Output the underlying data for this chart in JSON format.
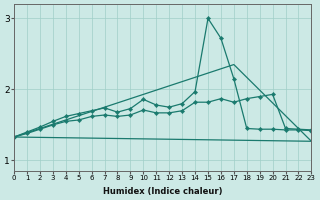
{
  "xlabel": "Humidex (Indice chaleur)",
  "bg_color": "#cce9e5",
  "grid_color": "#a0cfc8",
  "line_color": "#1a7a6e",
  "xlim": [
    0,
    23
  ],
  "ylim": [
    0.85,
    3.2
  ],
  "yticks": [
    1,
    2,
    3
  ],
  "xticks": [
    0,
    1,
    2,
    3,
    4,
    5,
    6,
    7,
    8,
    9,
    10,
    11,
    12,
    13,
    14,
    15,
    16,
    17,
    18,
    19,
    20,
    21,
    22,
    23
  ],
  "series": [
    {
      "x": [
        0,
        23
      ],
      "y": [
        1.33,
        1.27
      ],
      "marker": false
    },
    {
      "x": [
        0,
        17,
        23
      ],
      "y": [
        1.33,
        2.35,
        1.27
      ],
      "marker": false
    },
    {
      "x": [
        0,
        1,
        2,
        3,
        4,
        5,
        6,
        7,
        8,
        9,
        10,
        11,
        12,
        13,
        14,
        15,
        16,
        17,
        18,
        19,
        20,
        21,
        22,
        23
      ],
      "y": [
        1.33,
        1.38,
        1.44,
        1.5,
        1.55,
        1.57,
        1.62,
        1.64,
        1.62,
        1.64,
        1.71,
        1.67,
        1.67,
        1.7,
        1.82,
        1.82,
        1.87,
        1.82,
        1.87,
        1.9,
        1.93,
        1.45,
        1.44,
        1.43
      ],
      "marker": true
    },
    {
      "x": [
        0,
        1,
        2,
        3,
        4,
        5,
        6,
        7,
        8,
        9,
        10,
        11,
        12,
        13,
        14,
        15,
        16,
        17,
        18,
        19,
        20,
        21,
        22,
        23
      ],
      "y": [
        1.33,
        1.4,
        1.47,
        1.55,
        1.62,
        1.66,
        1.7,
        1.74,
        1.68,
        1.73,
        1.86,
        1.78,
        1.75,
        1.8,
        1.97,
        3.0,
        2.72,
        2.15,
        1.45,
        1.44,
        1.44,
        1.43,
        1.43,
        1.42
      ],
      "marker": true
    }
  ]
}
